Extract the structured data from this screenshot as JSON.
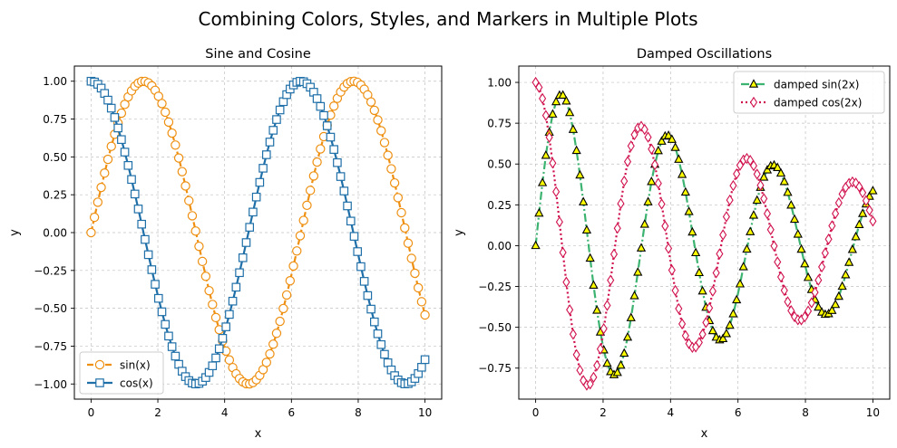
{
  "figure": {
    "suptitle": "Combining Colors, Styles, and Markers in Multiple Plots"
  },
  "chart_data": [
    {
      "type": "line",
      "title": "Sine and Cosine",
      "xlabel": "x",
      "ylabel": "y",
      "xlim": [
        -0.5,
        10.5
      ],
      "ylim": [
        -1.1,
        1.1
      ],
      "xticks": [
        0,
        2,
        4,
        6,
        8,
        10
      ],
      "xtick_labels": [
        "0",
        "2",
        "4",
        "6",
        "8",
        "10"
      ],
      "yticks": [
        -1.0,
        -0.75,
        -0.5,
        -0.25,
        0.0,
        0.25,
        0.5,
        0.75,
        1.0
      ],
      "ytick_labels": [
        "−1.00",
        "−0.75",
        "−0.50",
        "−0.25",
        "0.00",
        "0.25",
        "0.50",
        "0.75",
        "1.00"
      ],
      "grid": true,
      "legend_position": "lower-left",
      "samples": {
        "x_start": 0,
        "x_end": 10,
        "count": 100
      },
      "series": [
        {
          "name": "sin(x)",
          "function": "sin(x)",
          "color": "#ee8f10",
          "linestyle": "dashed",
          "marker": "circle-open"
        },
        {
          "name": "cos(x)",
          "function": "cos(x)",
          "color": "#1f6fa8",
          "linestyle": "solid",
          "marker": "square-open"
        }
      ]
    },
    {
      "type": "line",
      "title": "Damped Oscillations",
      "xlabel": "x",
      "ylabel": "y",
      "xlim": [
        -0.5,
        10.5
      ],
      "ylim": [
        -0.94,
        1.1
      ],
      "xticks": [
        0,
        2,
        4,
        6,
        8,
        10
      ],
      "xtick_labels": [
        "0",
        "2",
        "4",
        "6",
        "8",
        "10"
      ],
      "yticks": [
        -0.75,
        -0.5,
        -0.25,
        0.0,
        0.25,
        0.5,
        0.75,
        1.0
      ],
      "ytick_labels": [
        "−0.75",
        "−0.50",
        "−0.25",
        "0.00",
        "0.25",
        "0.50",
        "0.75",
        "1.00"
      ],
      "grid": true,
      "legend_position": "top-right",
      "samples": {
        "x_start": 0,
        "x_end": 10,
        "count": 100
      },
      "series": [
        {
          "name": "damped sin(2x)",
          "function": "exp(-0.1x)*sin(2x)",
          "color": "#3cb371",
          "linestyle": "dash-dot",
          "marker": "triangle",
          "marker_fill": "#ffff00",
          "marker_edge": "#000000"
        },
        {
          "name": "damped cos(2x)",
          "function": "exp(-0.1x)*cos(2x)",
          "color": "#d0104c",
          "linestyle": "dotted",
          "marker": "diamond-open"
        }
      ]
    }
  ]
}
